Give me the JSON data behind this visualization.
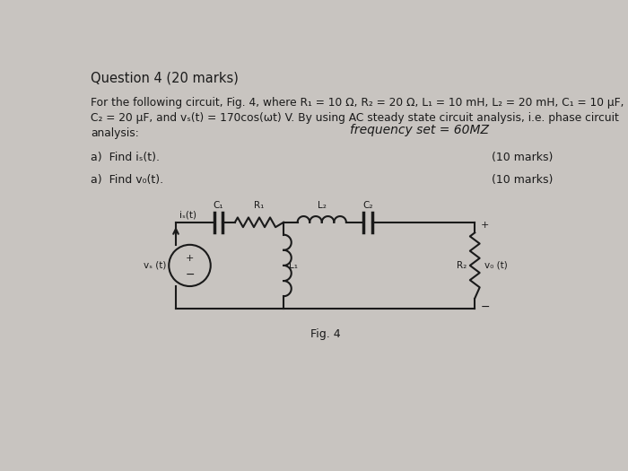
{
  "bg_color": "#c8c4c0",
  "text_color": "#1a1a1a",
  "title": "Question 4 (20 marks)",
  "line1": "For the following circuit, Fig. 4, where R₁ = 10 Ω, R₂ = 20 Ω, L₁ = 10 mH, L₂ = 20 mH, C₁ = 10 μF,",
  "line2": "C₂ = 20 μF, and vₛ(t) = 170cos(ωt) V. By using AC steady state circuit analysis, i.e. phase circuit",
  "line3": "analysis:",
  "handwritten": "frequency set = 60MZ",
  "part_a": "a)  Find iₛ(t).",
  "part_b": "a)  Find v₀(t).",
  "marks_a": "(10 marks)",
  "marks_b": "(10 marks)",
  "fig_label": "Fig. 4",
  "vs_label": "vₛ (t)",
  "is_label": "iₛ(t)",
  "C1_label": "C₁",
  "R1_label": "R₁",
  "L2_label": "L₂",
  "C2_label": "C₂",
  "L1_label": "L₁",
  "R2_label": "R₂",
  "vo_label": "v₀ (t)"
}
